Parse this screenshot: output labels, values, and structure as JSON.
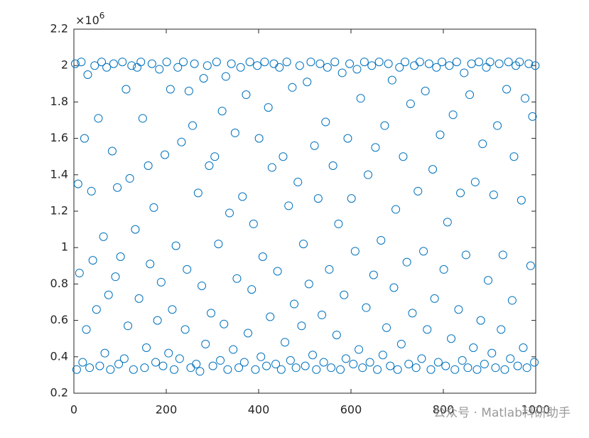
{
  "chart_data": {
    "type": "scatter",
    "y_exponent_base": "×10",
    "y_exponent": "6",
    "watermark": "公众号 · Matlab科研助手",
    "color": "#0072BD",
    "grid": false,
    "xlim": [
      0,
      1000
    ],
    "xticks": [
      0,
      200,
      400,
      600,
      800,
      1000
    ],
    "ylim": [
      0.2,
      2.2
    ],
    "yticks": [
      0.2,
      0.4,
      0.6,
      0.8,
      1,
      1.2,
      1.4,
      1.6,
      1.8,
      2,
      2.2
    ],
    "x": [
      3,
      6,
      9,
      12,
      16,
      19,
      23,
      27,
      30,
      34,
      38,
      41,
      45,
      49,
      53,
      56,
      60,
      64,
      67,
      71,
      75,
      79,
      83,
      86,
      90,
      94,
      97,
      101,
      105,
      109,
      113,
      117,
      121,
      125,
      129,
      133,
      137,
      141,
      145,
      149,
      153,
      157,
      161,
      165,
      169,
      173,
      177,
      181,
      185,
      189,
      193,
      197,
      201,
      205,
      209,
      213,
      217,
      221,
      225,
      229,
      233,
      237,
      241,
      245,
      249,
      253,
      257,
      261,
      265,
      269,
      273,
      277,
      281,
      285,
      289,
      293,
      297,
      301,
      305,
      309,
      313,
      317,
      321,
      325,
      329,
      333,
      337,
      341,
      345,
      349,
      353,
      357,
      361,
      365,
      369,
      373,
      377,
      381,
      385,
      389,
      393,
      397,
      401,
      405,
      409,
      413,
      417,
      421,
      425,
      429,
      433,
      437,
      441,
      445,
      449,
      453,
      457,
      461,
      465,
      469,
      473,
      477,
      481,
      485,
      489,
      493,
      497,
      501,
      505,
      509,
      513,
      517,
      521,
      525,
      529,
      533,
      537,
      541,
      545,
      549,
      553,
      557,
      561,
      565,
      569,
      573,
      577,
      581,
      585,
      589,
      593,
      597,
      601,
      605,
      609,
      613,
      617,
      621,
      625,
      629,
      633,
      637,
      641,
      645,
      649,
      653,
      657,
      661,
      665,
      669,
      673,
      677,
      681,
      685,
      689,
      693,
      697,
      701,
      705,
      709,
      713,
      717,
      721,
      725,
      729,
      733,
      737,
      741,
      745,
      749,
      753,
      757,
      761,
      765,
      769,
      773,
      777,
      781,
      785,
      789,
      793,
      797,
      801,
      805,
      809,
      813,
      817,
      821,
      825,
      829,
      833,
      837,
      841,
      845,
      849,
      853,
      857,
      861,
      865,
      869,
      873,
      877,
      881,
      885,
      889,
      893,
      897,
      901,
      905,
      909,
      913,
      917,
      921,
      925,
      929,
      933,
      937,
      941,
      945,
      949,
      953,
      957,
      961,
      965,
      969,
      973,
      977,
      981,
      985,
      989,
      993,
      997,
      999
    ],
    "values": [
      2.01,
      0.33,
      1.35,
      0.86,
      2.02,
      0.37,
      1.6,
      0.55,
      1.95,
      0.34,
      1.31,
      0.93,
      2.0,
      0.66,
      1.71,
      0.35,
      2.02,
      1.06,
      0.42,
      1.99,
      0.74,
      0.33,
      1.53,
      2.01,
      0.84,
      1.33,
      0.36,
      0.95,
      2.02,
      0.39,
      1.87,
      0.57,
      1.38,
      2.0,
      0.33,
      1.1,
      1.99,
      0.72,
      2.02,
      1.71,
      0.34,
      0.45,
      1.45,
      0.91,
      2.01,
      1.22,
      0.37,
      0.6,
      1.98,
      0.81,
      0.35,
      1.51,
      2.02,
      0.42,
      1.87,
      0.66,
      0.33,
      1.01,
      1.99,
      0.39,
      1.58,
      2.02,
      0.55,
      0.88,
      1.86,
      0.34,
      1.67,
      2.01,
      0.36,
      1.3,
      0.32,
      0.79,
      1.93,
      0.47,
      2.0,
      1.45,
      0.64,
      0.35,
      1.5,
      2.02,
      1.02,
      0.38,
      1.75,
      0.58,
      1.94,
      0.33,
      1.19,
      2.01,
      0.44,
      1.63,
      0.83,
      0.34,
      1.99,
      1.28,
      0.37,
      1.84,
      0.53,
      2.02,
      0.77,
      1.13,
      0.33,
      2.0,
      1.6,
      0.4,
      0.95,
      2.02,
      0.35,
      1.77,
      0.62,
      1.44,
      2.01,
      0.36,
      0.87,
      1.99,
      0.33,
      1.5,
      0.48,
      2.02,
      1.23,
      0.38,
      1.88,
      0.69,
      0.34,
      1.36,
      2.0,
      0.57,
      1.02,
      0.35,
      1.91,
      0.8,
      2.02,
      0.41,
      1.56,
      0.33,
      1.27,
      2.01,
      0.63,
      0.37,
      1.69,
      1.99,
      0.88,
      0.34,
      1.45,
      2.02,
      0.52,
      1.13,
      0.33,
      1.96,
      0.74,
      0.39,
      1.6,
      2.01,
      1.27,
      0.36,
      0.98,
      1.98,
      0.44,
      1.82,
      0.34,
      2.02,
      0.67,
      1.4,
      0.37,
      2.0,
      0.85,
      1.55,
      0.33,
      2.02,
      1.04,
      0.41,
      1.67,
      0.56,
      2.01,
      0.35,
      1.92,
      0.78,
      1.21,
      0.33,
      1.99,
      0.47,
      1.5,
      2.02,
      0.92,
      0.36,
      1.79,
      0.64,
      2.0,
      0.34,
      1.31,
      2.02,
      0.39,
      0.98,
      1.86,
      0.55,
      2.01,
      0.33,
      1.43,
      0.72,
      1.99,
      0.37,
      1.62,
      2.02,
      0.88,
      0.35,
      1.14,
      2.0,
      0.5,
      1.73,
      0.33,
      2.02,
      0.66,
      1.3,
      0.38,
      1.96,
      0.96,
      0.34,
      1.84,
      2.01,
      0.45,
      1.36,
      0.33,
      2.02,
      0.6,
      1.57,
      0.36,
      1.99,
      0.82,
      2.02,
      0.42,
      1.29,
      0.34,
      1.67,
      2.01,
      0.55,
      0.96,
      0.33,
      1.87,
      2.02,
      0.39,
      0.71,
      1.5,
      2.0,
      0.35,
      2.02,
      1.26,
      0.45,
      1.82,
      0.34,
      2.01,
      0.9,
      1.72,
      0.37,
      2.0
    ]
  }
}
